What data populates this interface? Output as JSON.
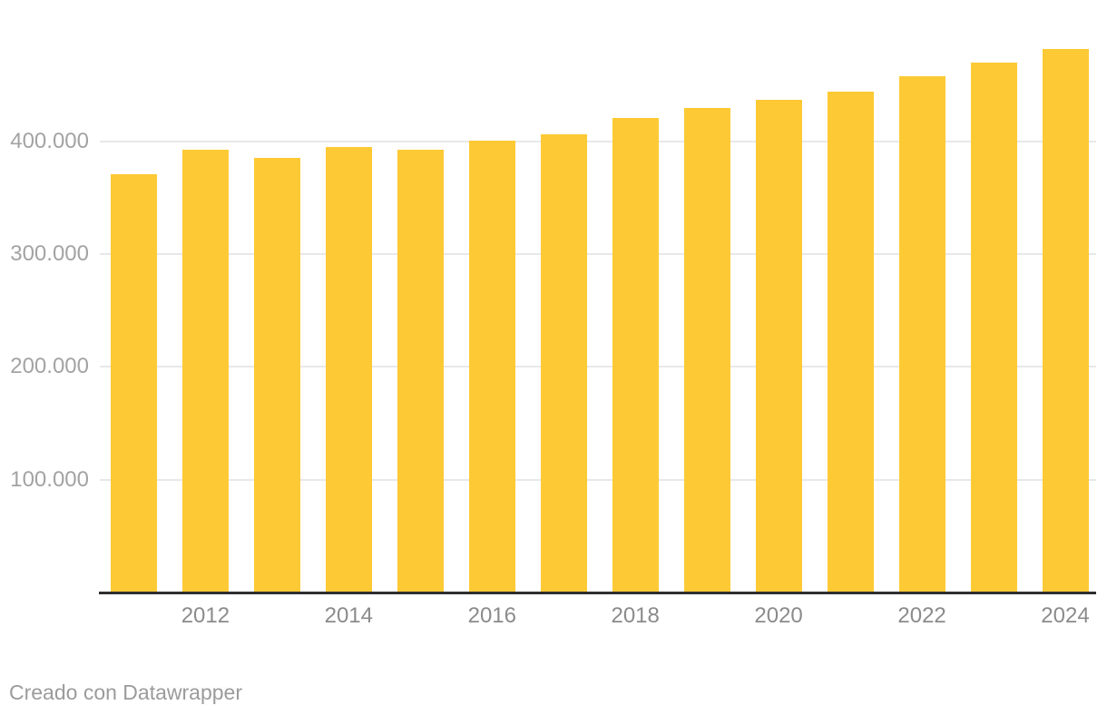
{
  "chart_data": {
    "type": "bar",
    "categories": [
      "2011",
      "2012",
      "2013",
      "2014",
      "2015",
      "2016",
      "2017",
      "2018",
      "2019",
      "2020",
      "2021",
      "2022",
      "2023",
      "2024"
    ],
    "values": [
      371000,
      393000,
      385000,
      395000,
      393000,
      401000,
      406000,
      421000,
      430000,
      437000,
      444000,
      458000,
      470000,
      482000
    ],
    "title": "",
    "xlabel": "",
    "ylabel": "",
    "ylim": [
      0,
      500000
    ],
    "grid": true,
    "legend": "none",
    "y_ticks": [
      {
        "value": 400000,
        "label": "400.000"
      },
      {
        "value": 300000,
        "label": "300.000"
      },
      {
        "value": 200000,
        "label": "200.000"
      },
      {
        "value": 100000,
        "label": "100.000"
      }
    ],
    "x_tick_labels": [
      "2012",
      "2014",
      "2016",
      "2018",
      "2020",
      "2022",
      "2024"
    ]
  },
  "colors": {
    "bar": "#FDCA35",
    "gridline": "#E8E8E8",
    "axis_line": "#2F2F2F",
    "y_tick_label": "#A3A3A3",
    "x_tick_label": "#8B8B8B",
    "attribution": "#9B9B9B"
  },
  "footer": {
    "attribution": "Creado con Datawrapper"
  }
}
